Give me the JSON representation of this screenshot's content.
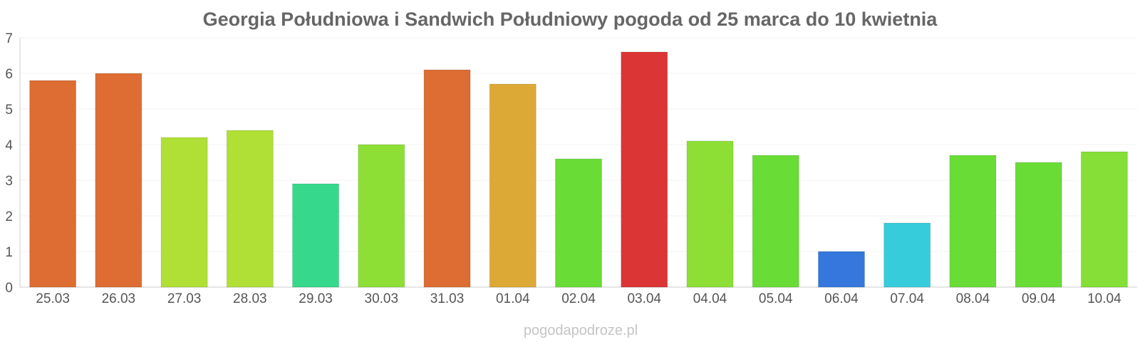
{
  "chart_data": {
    "type": "bar",
    "title": "Georgia Południowa i Sandwich Południowy pogoda od 25 marca do 10 kwietnia",
    "xlabel": "",
    "ylabel": "",
    "categories": [
      "25.03",
      "26.03",
      "27.03",
      "28.03",
      "29.03",
      "30.03",
      "31.03",
      "01.04",
      "02.04",
      "03.04",
      "04.04",
      "05.04",
      "06.04",
      "07.04",
      "08.04",
      "09.04",
      "10.04"
    ],
    "values": [
      5.8,
      6.0,
      4.2,
      4.4,
      2.9,
      4.0,
      6.1,
      5.7,
      3.6,
      6.6,
      4.1,
      3.7,
      1.0,
      1.8,
      3.7,
      3.5,
      3.8
    ],
    "colors": [
      "#dd6d33",
      "#dd6d33",
      "#b0df36",
      "#b0df36",
      "#36d98b",
      "#8ddf36",
      "#dd6d33",
      "#dda936",
      "#69dc36",
      "#dc3535",
      "#8ddf36",
      "#69dc36",
      "#3577dc",
      "#36ccdc",
      "#69dc36",
      "#69dc36",
      "#85df36"
    ],
    "ylim": [
      0,
      7
    ],
    "yticks": [
      "0",
      "1",
      "2",
      "3",
      "4",
      "5",
      "6",
      "7"
    ],
    "grid": true,
    "legend": "none"
  },
  "footer": {
    "source": "pogodapodroze.pl"
  }
}
